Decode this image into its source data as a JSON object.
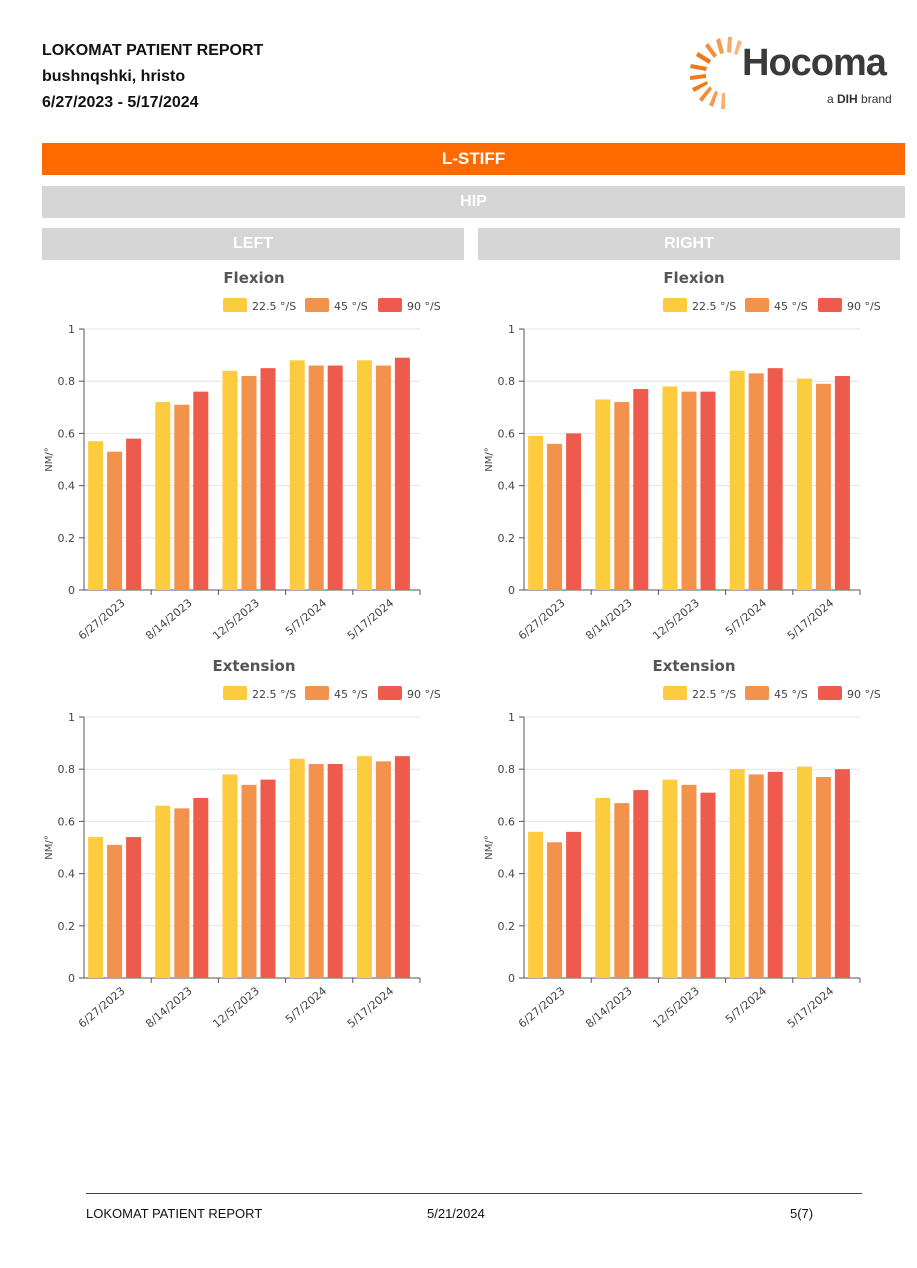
{
  "report": {
    "title": "LOKOMAT PATIENT REPORT",
    "patient": "bushnqshki, hristo",
    "date_range": "6/27/2023 - 5/17/2024"
  },
  "logo": {
    "name": "Hocoma",
    "tagline_prefix": "a ",
    "tagline_brand": "DIH",
    "tagline_suffix": " brand",
    "accent": "#f07a1a"
  },
  "bands": {
    "main": "L-STIFF",
    "joint": "HIP",
    "left": "LEFT",
    "right": "RIGHT"
  },
  "footer": {
    "left": "LOKOMAT PATIENT REPORT",
    "center": "5/21/2024",
    "right": "5(7)"
  },
  "chart_data": [
    {
      "type": "bar",
      "side": "LEFT",
      "title": "Flexion",
      "ylabel": "NM/°",
      "ylim": [
        0,
        1
      ],
      "yticks": [
        "0",
        "0.2",
        "0.4",
        "0.6",
        "0.8",
        "1"
      ],
      "categories": [
        "6/27/2023",
        "8/14/2023",
        "12/5/2023",
        "5/7/2024",
        "5/17/2024"
      ],
      "legend": "top",
      "grid": true,
      "series": [
        {
          "name": "22.5 °/S",
          "color": "#fccb3e",
          "values": [
            0.57,
            0.72,
            0.84,
            0.88,
            0.88
          ]
        },
        {
          "name": "45 °/S",
          "color": "#f2924d",
          "values": [
            0.53,
            0.71,
            0.82,
            0.86,
            0.86
          ]
        },
        {
          "name": "90 °/S",
          "color": "#ee5a4c",
          "values": [
            0.58,
            0.76,
            0.85,
            0.86,
            0.89
          ]
        }
      ]
    },
    {
      "type": "bar",
      "side": "RIGHT",
      "title": "Flexion",
      "ylabel": "NM/°",
      "ylim": [
        0,
        1
      ],
      "yticks": [
        "0",
        "0.2",
        "0.4",
        "0.6",
        "0.8",
        "1"
      ],
      "categories": [
        "6/27/2023",
        "8/14/2023",
        "12/5/2023",
        "5/7/2024",
        "5/17/2024"
      ],
      "legend": "top",
      "grid": true,
      "series": [
        {
          "name": "22.5 °/S",
          "color": "#fccb3e",
          "values": [
            0.59,
            0.73,
            0.78,
            0.84,
            0.81
          ]
        },
        {
          "name": "45 °/S",
          "color": "#f2924d",
          "values": [
            0.56,
            0.72,
            0.76,
            0.83,
            0.79
          ]
        },
        {
          "name": "90 °/S",
          "color": "#ee5a4c",
          "values": [
            0.6,
            0.77,
            0.76,
            0.85,
            0.82
          ]
        }
      ]
    },
    {
      "type": "bar",
      "side": "LEFT",
      "title": "Extension",
      "ylabel": "NM/°",
      "ylim": [
        0,
        1
      ],
      "yticks": [
        "0",
        "0.2",
        "0.4",
        "0.6",
        "0.8",
        "1"
      ],
      "categories": [
        "6/27/2023",
        "8/14/2023",
        "12/5/2023",
        "5/7/2024",
        "5/17/2024"
      ],
      "legend": "top",
      "grid": true,
      "series": [
        {
          "name": "22.5 °/S",
          "color": "#fccb3e",
          "values": [
            0.54,
            0.66,
            0.78,
            0.84,
            0.85
          ]
        },
        {
          "name": "45 °/S",
          "color": "#f2924d",
          "values": [
            0.51,
            0.65,
            0.74,
            0.82,
            0.83
          ]
        },
        {
          "name": "90 °/S",
          "color": "#ee5a4c",
          "values": [
            0.54,
            0.69,
            0.76,
            0.82,
            0.85
          ]
        }
      ]
    },
    {
      "type": "bar",
      "side": "RIGHT",
      "title": "Extension",
      "ylabel": "NM/°",
      "ylim": [
        0,
        1
      ],
      "yticks": [
        "0",
        "0.2",
        "0.4",
        "0.6",
        "0.8",
        "1"
      ],
      "categories": [
        "6/27/2023",
        "8/14/2023",
        "12/5/2023",
        "5/7/2024",
        "5/17/2024"
      ],
      "legend": "top",
      "grid": true,
      "series": [
        {
          "name": "22.5 °/S",
          "color": "#fccb3e",
          "values": [
            0.56,
            0.69,
            0.76,
            0.8,
            0.81
          ]
        },
        {
          "name": "45 °/S",
          "color": "#f2924d",
          "values": [
            0.52,
            0.67,
            0.74,
            0.78,
            0.77
          ]
        },
        {
          "name": "90 °/S",
          "color": "#ee5a4c",
          "values": [
            0.56,
            0.72,
            0.71,
            0.79,
            0.8
          ]
        }
      ]
    }
  ]
}
